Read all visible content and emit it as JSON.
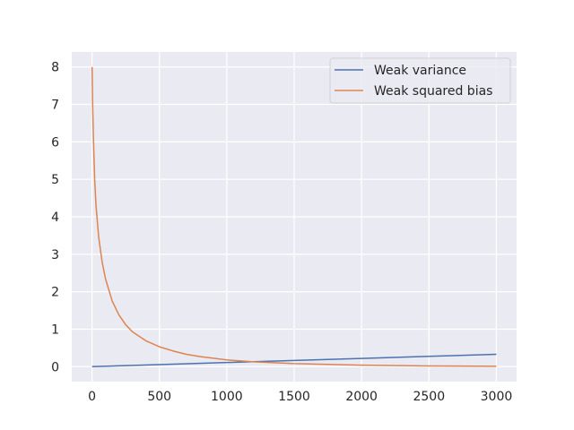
{
  "chart_data": {
    "type": "line",
    "title": "",
    "xlabel": "",
    "ylabel": "",
    "xlim": [
      -150,
      3150
    ],
    "ylim": [
      -0.4,
      8.4
    ],
    "x_ticks": [
      0,
      500,
      1000,
      1500,
      2000,
      2500,
      3000
    ],
    "y_ticks": [
      0,
      1,
      2,
      3,
      4,
      5,
      6,
      7,
      8
    ],
    "grid": true,
    "legend_position": "top-right",
    "series": [
      {
        "name": "Weak variance",
        "color": "#4c72b0",
        "x": [
          1,
          500,
          1000,
          1500,
          2000,
          2500,
          3000
        ],
        "y": [
          0.0,
          0.055,
          0.11,
          0.165,
          0.22,
          0.275,
          0.33
        ]
      },
      {
        "name": "Weak squared bias",
        "color": "#dd8452",
        "x": [
          1,
          5,
          10,
          20,
          30,
          50,
          75,
          100,
          150,
          200,
          250,
          300,
          400,
          500,
          600,
          700,
          800,
          1000,
          1200,
          1500,
          2000,
          2500,
          3000
        ],
        "y": [
          8.0,
          7.0,
          6.2,
          5.0,
          4.3,
          3.45,
          2.8,
          2.35,
          1.75,
          1.38,
          1.12,
          0.93,
          0.69,
          0.53,
          0.42,
          0.33,
          0.27,
          0.18,
          0.13,
          0.08,
          0.04,
          0.02,
          0.01
        ]
      }
    ]
  }
}
